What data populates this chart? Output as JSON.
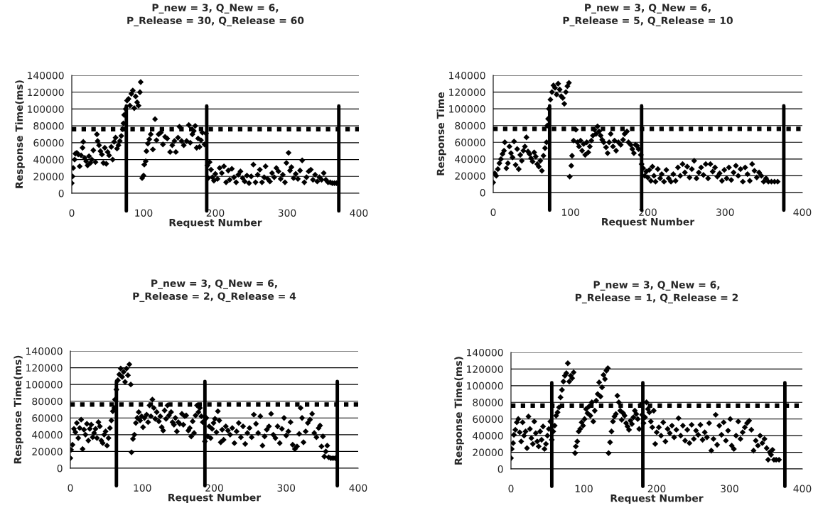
{
  "chart_data": [
    {
      "type": "scatter",
      "title": "P_new = 3, Q_New = 6,\nP_Release = 30, Q_Release = 60",
      "xlabel": "Request Number",
      "ylabel": "Response Time(ms)",
      "xlim": [
        0,
        400
      ],
      "xticks": [
        0,
        100,
        200,
        300,
        400
      ],
      "ylim": [
        0,
        140000
      ],
      "yticks": [
        0,
        20000,
        40000,
        60000,
        80000,
        100000,
        120000,
        140000
      ],
      "grid": "y",
      "marker": "diamond",
      "ref_lines": [
        {
          "axis": "y",
          "value": 76000,
          "line_style": "dotted",
          "color": "#000000"
        },
        {
          "axis": "x",
          "value": 76,
          "color": "#000000"
        },
        {
          "axis": "x",
          "value": 188,
          "color": "#000000"
        },
        {
          "axis": "x",
          "value": 372,
          "color": "#000000"
        }
      ],
      "series": [
        {
          "color": "#000000",
          "x": [
            0,
            1,
            2,
            4,
            5,
            7,
            9,
            11,
            13,
            15,
            16,
            18,
            20,
            22,
            24,
            26,
            28,
            30,
            33,
            35,
            36,
            38,
            40,
            42,
            44,
            46,
            48,
            50,
            52,
            55,
            57,
            59,
            61,
            63,
            65,
            67,
            69,
            71,
            72,
            73,
            75,
            77,
            79,
            81,
            83,
            85,
            87,
            89,
            91,
            93,
            95,
            96,
            98,
            100,
            101,
            103,
            104,
            106,
            108,
            110,
            113,
            116,
            118,
            121,
            124,
            127,
            130,
            133,
            137,
            140,
            143,
            145,
            148,
            150,
            153,
            156,
            160,
            163,
            165,
            168,
            170,
            172,
            174,
            176,
            178,
            180,
            182,
            185,
            187,
            189,
            190,
            192,
            194,
            196,
            198,
            200,
            203,
            206,
            209,
            212,
            215,
            218,
            220,
            223,
            226,
            229,
            232,
            235,
            238,
            241,
            244,
            247,
            250,
            253,
            256,
            259,
            262,
            265,
            268,
            270,
            273,
            276,
            279,
            282,
            285,
            288,
            291,
            294,
            297,
            299,
            302,
            304,
            306,
            309,
            312,
            315,
            318,
            321,
            324,
            327,
            330,
            333,
            336,
            339,
            342,
            345,
            348,
            351,
            354,
            357,
            360,
            363,
            366,
            369
          ],
          "values": [
            12000,
            20000,
            30000,
            40000,
            47000,
            48000,
            46000,
            32000,
            45000,
            54000,
            61000,
            42000,
            38000,
            33000,
            44000,
            36000,
            40000,
            51000,
            37000,
            70000,
            62000,
            57000,
            50000,
            46000,
            36000,
            54000,
            35000,
            49000,
            45000,
            55000,
            40000,
            61000,
            66000,
            53000,
            57000,
            62000,
            68000,
            76000,
            83000,
            93000,
            100000,
            110000,
            112000,
            104000,
            118000,
            122000,
            101000,
            115000,
            108000,
            104000,
            120000,
            132000,
            18000,
            21000,
            34000,
            38000,
            50000,
            59000,
            64000,
            70000,
            52000,
            88000,
            63000,
            70000,
            72000,
            58000,
            67000,
            65000,
            49000,
            57000,
            62000,
            49000,
            66000,
            79000,
            62000,
            57000,
            62000,
            81000,
            60000,
            70000,
            74000,
            80000,
            54000,
            65000,
            55000,
            63000,
            72000,
            58000,
            71000,
            33000,
            18000,
            37000,
            28000,
            19000,
            15000,
            23000,
            17000,
            30000,
            24000,
            32000,
            13000,
            27000,
            16000,
            29000,
            19000,
            13000,
            22000,
            26000,
            18000,
            14000,
            21000,
            12000,
            20000,
            34000,
            13000,
            22000,
            28000,
            13000,
            19000,
            32000,
            17000,
            14000,
            24000,
            19000,
            30000,
            26000,
            17000,
            22000,
            13000,
            36000,
            48000,
            27000,
            31000,
            18000,
            23000,
            17000,
            27000,
            39000,
            13000,
            19000,
            26000,
            28000,
            16000,
            22000,
            14000,
            19000,
            16000,
            24000,
            16000,
            13000,
            13000,
            12000,
            12000,
            12000
          ]
        }
      ]
    },
    {
      "type": "scatter",
      "title": "P_new = 3, Q_New = 6,\nP_Release = 5, Q_Release = 10",
      "xlabel": "Request Number",
      "ylabel": "Response Time",
      "xlim": [
        0,
        400
      ],
      "xticks": [
        0,
        100,
        200,
        300,
        400
      ],
      "ylim": [
        0,
        140000
      ],
      "yticks": [
        0,
        20000,
        40000,
        60000,
        80000,
        100000,
        120000,
        140000
      ],
      "grid": "y",
      "marker": "diamond",
      "ref_lines": [
        {
          "axis": "y",
          "value": 76000,
          "line_style": "dotted",
          "color": "#000000"
        },
        {
          "axis": "x",
          "value": 73,
          "color": "#000000"
        },
        {
          "axis": "x",
          "value": 192,
          "color": "#000000"
        },
        {
          "axis": "x",
          "value": 376,
          "color": "#000000"
        }
      ],
      "series": [
        {
          "color": "#000000",
          "x": [
            0,
            2,
            4,
            6,
            8,
            10,
            12,
            14,
            15,
            17,
            19,
            21,
            23,
            25,
            27,
            29,
            31,
            33,
            35,
            37,
            39,
            41,
            43,
            45,
            47,
            49,
            51,
            53,
            55,
            57,
            59,
            61,
            63,
            65,
            67,
            69,
            70,
            71,
            72,
            74,
            76,
            78,
            80,
            82,
            84,
            86,
            88,
            90,
            92,
            94,
            96,
            98,
            99,
            101,
            102,
            104,
            107,
            109,
            111,
            113,
            115,
            117,
            119,
            121,
            123,
            125,
            127,
            129,
            131,
            133,
            135,
            137,
            139,
            141,
            143,
            146,
            148,
            150,
            152,
            155,
            157,
            159,
            162,
            165,
            168,
            170,
            173,
            175,
            178,
            180,
            182,
            184,
            186,
            188,
            191,
            192,
            194,
            196,
            198,
            200,
            202,
            204,
            206,
            208,
            210,
            213,
            216,
            218,
            221,
            224,
            227,
            230,
            233,
            236,
            239,
            242,
            245,
            248,
            251,
            254,
            257,
            260,
            263,
            266,
            269,
            272,
            275,
            278,
            281,
            284,
            287,
            290,
            293,
            296,
            299,
            302,
            305,
            308,
            311,
            314,
            317,
            320,
            323,
            326,
            329,
            332,
            335,
            338,
            341,
            344,
            347,
            350,
            353,
            356,
            360,
            364,
            368
          ],
          "values": [
            12000,
            23000,
            20000,
            28000,
            35000,
            40000,
            46000,
            50000,
            60000,
            29000,
            35000,
            55000,
            47000,
            42000,
            61000,
            33000,
            52000,
            28000,
            45000,
            38000,
            50000,
            55000,
            66000,
            49000,
            46000,
            41000,
            37000,
            48000,
            43000,
            34000,
            31000,
            38000,
            26000,
            44000,
            53000,
            60000,
            80000,
            88000,
            100000,
            111000,
            120000,
            128000,
            125000,
            117000,
            130000,
            123000,
            115000,
            113000,
            106000,
            120000,
            127000,
            131000,
            19000,
            32000,
            44000,
            62000,
            75000,
            60000,
            55000,
            62000,
            50000,
            58000,
            45000,
            60000,
            48000,
            55000,
            62000,
            68000,
            75000,
            70000,
            79000,
            73000,
            68000,
            63000,
            60000,
            54000,
            47000,
            60000,
            70000,
            55000,
            62000,
            50000,
            60000,
            57000,
            63000,
            70000,
            73000,
            60000,
            57000,
            52000,
            47000,
            57000,
            56000,
            52000,
            45000,
            34000,
            29000,
            20000,
            25000,
            18000,
            27000,
            14000,
            31000,
            20000,
            13000,
            28000,
            17000,
            22000,
            13000,
            27000,
            17000,
            13000,
            22000,
            14000,
            30000,
            20000,
            34000,
            24000,
            31000,
            18000,
            28000,
            38000,
            17000,
            24000,
            30000,
            21000,
            34000,
            17000,
            34000,
            25000,
            30000,
            19000,
            23000,
            14000,
            27000,
            17000,
            30000,
            15000,
            24000,
            32000,
            20000,
            28000,
            13000,
            30000,
            22000,
            14000,
            34000,
            26000,
            18000,
            24000,
            20000,
            13000,
            17000,
            13000,
            13000,
            13000,
            13000
          ]
        }
      ]
    },
    {
      "type": "scatter",
      "title": "P_new = 3, Q_New = 6,\nP_Release = 2, Q_Release = 4",
      "xlabel": "Request Number",
      "ylabel": "Response Time(ms)",
      "xlim": [
        0,
        400
      ],
      "xticks": [
        0,
        100,
        200,
        300,
        400
      ],
      "ylim": [
        0,
        140000
      ],
      "yticks": [
        0,
        20000,
        40000,
        60000,
        80000,
        100000,
        120000,
        140000
      ],
      "grid": "y",
      "marker": "diamond",
      "ref_lines": [
        {
          "axis": "y",
          "value": 76000,
          "line_style": "dotted",
          "color": "#000000"
        },
        {
          "axis": "x",
          "value": 64,
          "color": "#000000"
        },
        {
          "axis": "x",
          "value": 187,
          "color": "#000000"
        },
        {
          "axis": "x",
          "value": 371,
          "color": "#000000"
        }
      ],
      "series": [
        {
          "color": "#000000",
          "x": [
            0,
            1,
            3,
            5,
            7,
            9,
            11,
            13,
            15,
            17,
            19,
            21,
            23,
            25,
            27,
            29,
            31,
            33,
            35,
            37,
            39,
            41,
            43,
            45,
            47,
            49,
            51,
            53,
            55,
            57,
            59,
            61,
            62,
            64,
            66,
            68,
            70,
            72,
            74,
            76,
            78,
            80,
            82,
            84,
            85,
            87,
            89,
            91,
            93,
            95,
            97,
            99,
            101,
            103,
            106,
            108,
            110,
            112,
            114,
            116,
            118,
            120,
            123,
            125,
            127,
            129,
            131,
            133,
            135,
            137,
            140,
            142,
            144,
            146,
            148,
            150,
            152,
            155,
            157,
            159,
            161,
            164,
            166,
            168,
            170,
            172,
            174,
            176,
            178,
            180,
            182,
            184,
            187,
            189,
            191,
            193,
            195,
            197,
            199,
            201,
            203,
            205,
            207,
            209,
            211,
            213,
            216,
            219,
            222,
            225,
            228,
            231,
            234,
            237,
            240,
            243,
            246,
            249,
            252,
            255,
            258,
            261,
            264,
            267,
            270,
            273,
            276,
            279,
            282,
            285,
            288,
            291,
            294,
            297,
            300,
            303,
            306,
            309,
            312,
            315,
            318,
            320,
            322,
            324,
            327,
            330,
            333,
            336,
            339,
            342,
            345,
            347,
            349,
            351,
            353,
            355,
            357,
            359,
            362,
            365,
            368
          ],
          "values": [
            12000,
            22000,
            28000,
            47000,
            43000,
            54000,
            36000,
            48000,
            58000,
            23000,
            46000,
            40000,
            53000,
            33000,
            47000,
            52000,
            37000,
            42000,
            47000,
            36000,
            55000,
            50000,
            33000,
            30000,
            40000,
            44000,
            27000,
            36000,
            48000,
            57000,
            68000,
            72000,
            82000,
            94000,
            105000,
            112000,
            119000,
            109000,
            115000,
            103000,
            119000,
            111000,
            124000,
            100000,
            19000,
            35000,
            40000,
            54000,
            60000,
            67000,
            57000,
            62000,
            49000,
            60000,
            64000,
            55000,
            75000,
            62000,
            82000,
            72000,
            59000,
            67000,
            56000,
            62000,
            49000,
            45000,
            69000,
            59000,
            75000,
            63000,
            67000,
            55000,
            52000,
            60000,
            44000,
            55000,
            53000,
            65000,
            52000,
            62000,
            63000,
            45000,
            48000,
            38000,
            56000,
            42000,
            63000,
            75000,
            67000,
            72000,
            62000,
            55000,
            32000,
            60000,
            38000,
            50000,
            36000,
            47000,
            54000,
            59000,
            43000,
            68000,
            57000,
            31000,
            46000,
            34000,
            50000,
            45000,
            40000,
            48000,
            30000,
            44000,
            54000,
            37000,
            50000,
            29000,
            42000,
            48000,
            37000,
            64000,
            53000,
            42000,
            62000,
            27000,
            38000,
            46000,
            50000,
            65000,
            40000,
            36000,
            50000,
            30000,
            47000,
            60000,
            39000,
            44000,
            55000,
            28000,
            23000,
            26000,
            41000,
            72000,
            60000,
            31000,
            44000,
            54000,
            58000,
            65000,
            42000,
            37000,
            48000,
            51000,
            26000,
            38000,
            14000,
            20000,
            27000,
            13000,
            12000,
            12000,
            12000
          ]
        }
      ]
    },
    {
      "type": "scatter",
      "title": "P_new = 3, Q_New = 6,\nP_Release = 1, Q_Release = 2",
      "xlabel": "Request Number",
      "ylabel": "Response Time(ms)",
      "xlim": [
        0,
        400
      ],
      "xticks": [
        0,
        100,
        200,
        300,
        400
      ],
      "ylim": [
        0,
        140000
      ],
      "yticks": [
        0,
        20000,
        40000,
        60000,
        80000,
        100000,
        120000,
        140000
      ],
      "grid": "y",
      "marker": "diamond",
      "ref_lines": [
        {
          "axis": "y",
          "value": 76000,
          "line_style": "dotted",
          "color": "#000000"
        },
        {
          "axis": "x",
          "value": 56,
          "color": "#000000"
        },
        {
          "axis": "x",
          "value": 181,
          "color": "#000000"
        },
        {
          "axis": "x",
          "value": 376,
          "color": "#000000"
        }
      ],
      "series": [
        {
          "color": "#000000",
          "x": [
            0,
            1,
            3,
            4,
            6,
            8,
            10,
            12,
            14,
            16,
            18,
            20,
            22,
            24,
            26,
            28,
            30,
            32,
            34,
            36,
            38,
            40,
            42,
            44,
            46,
            48,
            50,
            52,
            54,
            56,
            58,
            60,
            62,
            64,
            66,
            68,
            70,
            72,
            74,
            76,
            78,
            80,
            82,
            84,
            86,
            88,
            89,
            91,
            93,
            95,
            97,
            99,
            101,
            103,
            105,
            107,
            109,
            111,
            113,
            115,
            117,
            119,
            121,
            123,
            125,
            127,
            129,
            131,
            133,
            134,
            136,
            138,
            140,
            142,
            144,
            146,
            148,
            150,
            152,
            154,
            156,
            158,
            160,
            162,
            164,
            166,
            168,
            170,
            172,
            174,
            176,
            178,
            180,
            182,
            184,
            186,
            188,
            190,
            192,
            194,
            196,
            198,
            200,
            203,
            206,
            209,
            212,
            215,
            218,
            221,
            224,
            227,
            230,
            233,
            236,
            239,
            242,
            245,
            248,
            251,
            254,
            257,
            260,
            263,
            266,
            269,
            272,
            275,
            278,
            281,
            283,
            286,
            289,
            292,
            295,
            298,
            301,
            303,
            306,
            309,
            312,
            315,
            318,
            321,
            324,
            327,
            330,
            333,
            336,
            339,
            342,
            345,
            348,
            351,
            353,
            355,
            357,
            359,
            361,
            364,
            368
          ],
          "values": [
            13000,
            24000,
            31000,
            41000,
            47000,
            56000,
            60000,
            44000,
            33000,
            56000,
            40000,
            45000,
            25000,
            63000,
            48000,
            37000,
            30000,
            57000,
            43000,
            33000,
            27000,
            45000,
            35000,
            51000,
            24000,
            30000,
            40000,
            48000,
            57000,
            35000,
            45000,
            52000,
            64000,
            68000,
            74000,
            86000,
            95000,
            105000,
            112000,
            115000,
            127000,
            105000,
            112000,
            109000,
            116000,
            19000,
            27000,
            33000,
            45000,
            48000,
            56000,
            52000,
            60000,
            72000,
            67000,
            75000,
            64000,
            80000,
            57000,
            70000,
            82000,
            90000,
            104000,
            87000,
            98000,
            113000,
            108000,
            118000,
            121000,
            19000,
            32000,
            45000,
            57000,
            63000,
            66000,
            88000,
            80000,
            70000,
            59000,
            67000,
            64000,
            55000,
            51000,
            47000,
            58000,
            54000,
            62000,
            70000,
            66000,
            60000,
            48000,
            77000,
            65000,
            55000,
            62000,
            80000,
            72000,
            68000,
            57000,
            50000,
            70000,
            30000,
            44000,
            50000,
            40000,
            56000,
            33000,
            48000,
            43000,
            52000,
            38000,
            47000,
            61000,
            40000,
            52000,
            34000,
            47000,
            31000,
            53000,
            36000,
            46000,
            41000,
            53000,
            35000,
            44000,
            38000,
            55000,
            22000,
            36000,
            65000,
            29000,
            52000,
            41000,
            56000,
            34000,
            46000,
            60000,
            28000,
            24000,
            40000,
            57000,
            36000,
            44000,
            50000,
            55000,
            58000,
            47000,
            22000,
            34000,
            28000,
            40000,
            31000,
            36000,
            25000,
            11000,
            20000,
            17000,
            23000,
            11000,
            11000,
            11000
          ]
        }
      ]
    }
  ]
}
